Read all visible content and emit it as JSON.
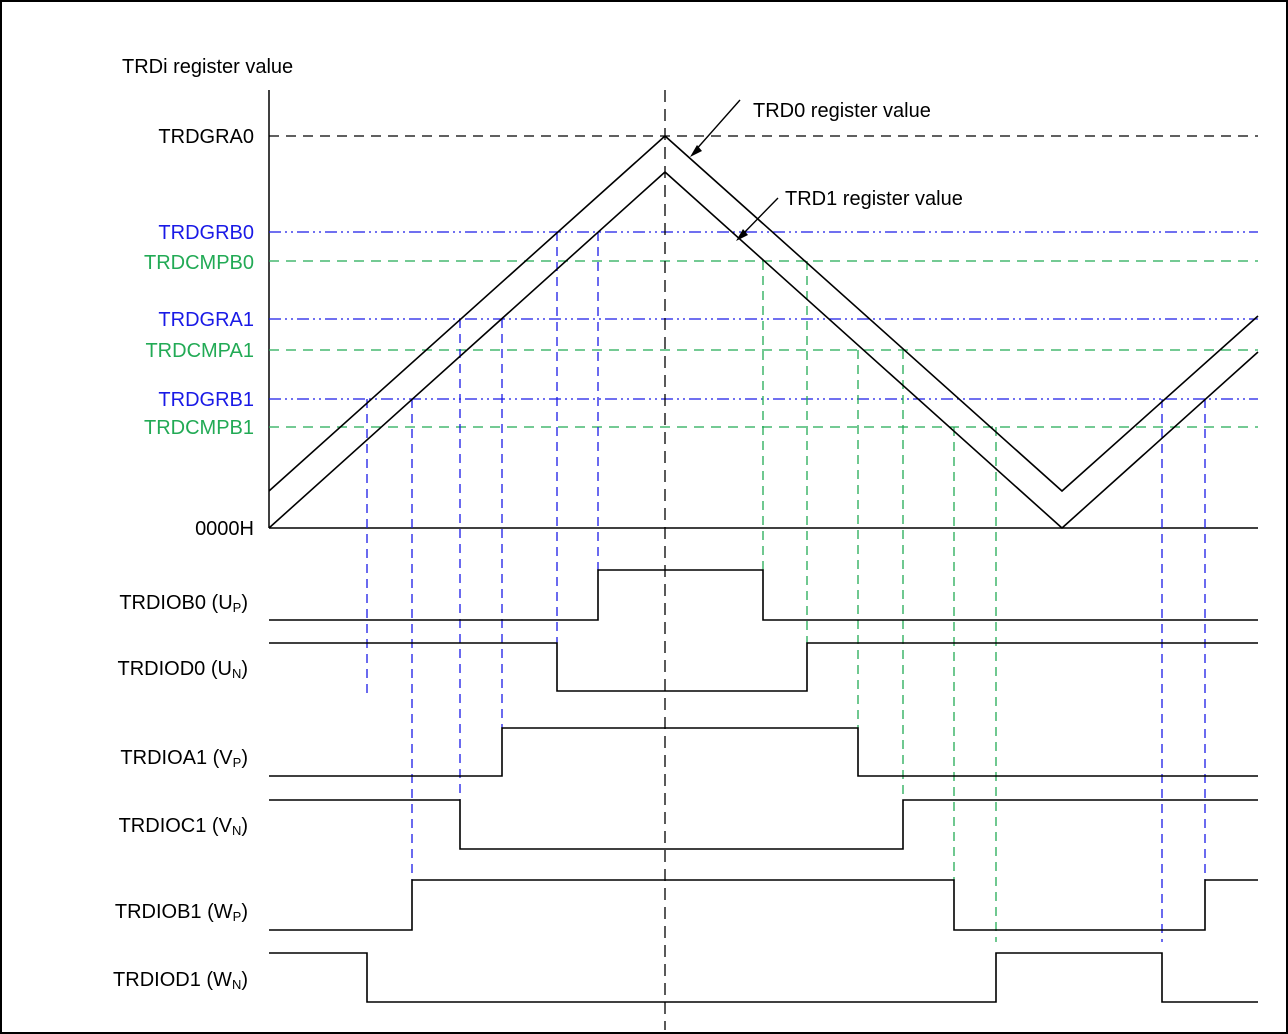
{
  "title": "TRDi register value",
  "colors": {
    "black": "#000000",
    "blue": "#1a1ae6",
    "green": "#22aa55"
  },
  "levels": {
    "trdgra0": "TRDGRA0",
    "trdgrb0": "TRDGRB0",
    "trdcmpb0": "TRDCMPB0",
    "trdgra1": "TRDGRA1",
    "trdcmpa1": "TRDCMPA1",
    "trdgrb1": "TRDGRB1",
    "trdcmpb1": "TRDCMPB1",
    "zero": "0000H"
  },
  "callouts": {
    "trd0": "TRD0 register value",
    "trd1": "TRD1 register value"
  },
  "signals": [
    {
      "name": "TRDIOB0 (U",
      "sub": "P",
      "close": ")"
    },
    {
      "name": "TRDIOD0 (U",
      "sub": "N",
      "close": ")"
    },
    {
      "name": "TRDIOA1 (V",
      "sub": "P",
      "close": ")"
    },
    {
      "name": "TRDIOC1 (V",
      "sub": "N",
      "close": ")"
    },
    {
      "name": "TRDIOB1 (W",
      "sub": "P",
      "close": ")"
    },
    {
      "name": "TRDIOD1 (W",
      "sub": "N",
      "close": ")"
    }
  ]
}
